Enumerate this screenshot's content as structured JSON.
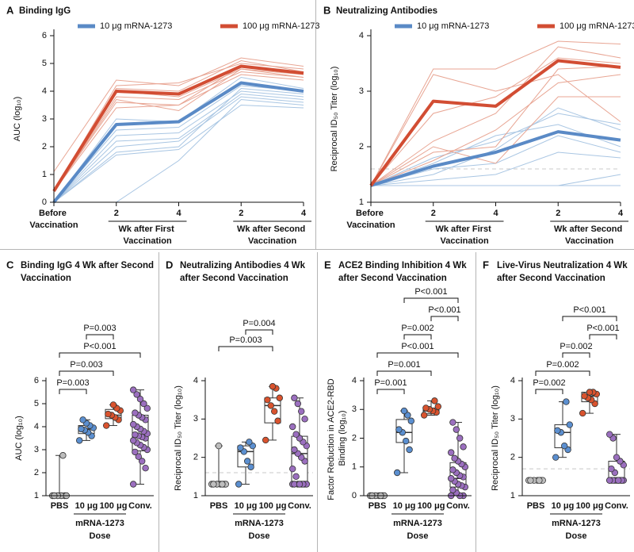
{
  "chart_data": [
    {
      "type": "line",
      "panel": "A",
      "title": "Binding IgG",
      "ylabel": "AUC (log₁₀)",
      "categories": [
        "Before Vaccination",
        "2",
        "4",
        "2",
        "4"
      ],
      "x_groups": [
        "Wk after First Vaccination",
        "Wk after Second Vaccination"
      ],
      "ylim": [
        0,
        6
      ],
      "yticks": [
        0,
        1,
        2,
        3,
        4,
        5,
        6
      ],
      "legend": "top",
      "series": [
        {
          "name": "10 μg mRNA-1273",
          "color": "#5a8ac6",
          "values": [
            0,
            2.8,
            2.9,
            4.3,
            4.0
          ]
        },
        {
          "name": "100 μg mRNA-1273",
          "color": "#d24d33",
          "values": [
            0.4,
            4.0,
            3.9,
            4.9,
            4.65
          ]
        }
      ],
      "individuals": [
        {
          "color": "#a9c6e3",
          "values": [
            0,
            3.0,
            2.9,
            4.5,
            4.1
          ]
        },
        {
          "color": "#a9c6e3",
          "values": [
            0,
            2.6,
            2.7,
            4.2,
            4.0
          ]
        },
        {
          "color": "#a9c6e3",
          "values": [
            0,
            2.4,
            2.5,
            4.0,
            3.8
          ]
        },
        {
          "color": "#a9c6e3",
          "values": [
            0,
            2.2,
            2.3,
            3.9,
            3.7
          ]
        },
        {
          "color": "#a9c6e3",
          "values": [
            0,
            2.0,
            2.2,
            3.8,
            3.6
          ]
        },
        {
          "color": "#a9c6e3",
          "values": [
            0,
            1.8,
            2.0,
            4.1,
            3.9
          ]
        },
        {
          "color": "#a9c6e3",
          "values": [
            0,
            1.7,
            1.9,
            3.5,
            3.4
          ]
        },
        {
          "color": "#a9c6e3",
          "values": [
            0,
            0,
            1.5,
            3.7,
            3.5
          ]
        },
        {
          "color": "#e8a593",
          "values": [
            1.1,
            4.4,
            4.2,
            5.2,
            4.9
          ]
        },
        {
          "color": "#e8a593",
          "values": [
            0.4,
            4.2,
            4.3,
            5.0,
            4.8
          ]
        },
        {
          "color": "#e8a593",
          "values": [
            0.4,
            4.0,
            3.8,
            4.8,
            4.6
          ]
        },
        {
          "color": "#e8a593",
          "values": [
            0.4,
            3.8,
            3.7,
            4.7,
            4.5
          ]
        },
        {
          "color": "#e8a593",
          "values": [
            0.4,
            3.6,
            3.5,
            4.6,
            4.4
          ]
        },
        {
          "color": "#e8a593",
          "values": [
            0.4,
            3.4,
            3.5,
            4.9,
            4.7
          ]
        },
        {
          "color": "#e8a593",
          "values": [
            0.4,
            4.1,
            4.0,
            5.1,
            4.7
          ]
        },
        {
          "color": "#e8a593",
          "values": [
            0.4,
            3.7,
            3.3,
            4.8,
            4.5
          ]
        }
      ]
    },
    {
      "type": "line",
      "panel": "B",
      "title": "Neutralizing Antibodies",
      "ylabel": "Reciprocal ID₅₀ Titer (log₁₀)",
      "categories": [
        "Before Vaccination",
        "2",
        "4",
        "2",
        "4"
      ],
      "x_groups": [
        "Wk after First Vaccination",
        "Wk after Second Vaccination"
      ],
      "ylim": [
        1,
        4
      ],
      "yticks": [
        1,
        2,
        3,
        4
      ],
      "legend": "top",
      "reference_line": 1.6,
      "series": [
        {
          "name": "10 μg mRNA-1273",
          "color": "#5a8ac6",
          "values": [
            1.3,
            1.65,
            1.9,
            2.27,
            2.12
          ]
        },
        {
          "name": "100 μg mRNA-1273",
          "color": "#d24d33",
          "values": [
            1.3,
            2.82,
            2.73,
            3.55,
            3.43
          ]
        }
      ],
      "individuals": [
        {
          "color": "#a9c6e3",
          "values": [
            1.3,
            1.3,
            1.3,
            1.3,
            1.3
          ]
        },
        {
          "color": "#a9c6e3",
          "values": [
            1.3,
            1.5,
            1.95,
            2.7,
            2.3
          ]
        },
        {
          "color": "#a9c6e3",
          "values": [
            1.3,
            1.3,
            1.3,
            1.3,
            1.5
          ]
        },
        {
          "color": "#a9c6e3",
          "values": [
            1.3,
            1.8,
            2.1,
            2.6,
            2.4
          ]
        },
        {
          "color": "#a9c6e3",
          "values": [
            1.3,
            1.6,
            1.7,
            2.2,
            1.9
          ]
        },
        {
          "color": "#a9c6e3",
          "values": [
            1.3,
            1.4,
            1.5,
            1.9,
            1.8
          ]
        },
        {
          "color": "#a9c6e3",
          "values": [
            1.3,
            1.7,
            2.2,
            2.4,
            2.0
          ]
        },
        {
          "color": "#e8a593",
          "values": [
            1.3,
            3.4,
            3.4,
            3.9,
            3.85
          ]
        },
        {
          "color": "#e8a593",
          "values": [
            1.3,
            3.3,
            3.0,
            3.3,
            2.45
          ]
        },
        {
          "color": "#e8a593",
          "values": [
            1.3,
            2.6,
            2.9,
            3.6,
            3.5
          ]
        },
        {
          "color": "#e8a593",
          "values": [
            1.3,
            2.1,
            2.6,
            3.8,
            3.6
          ]
        },
        {
          "color": "#e8a593",
          "values": [
            1.3,
            1.75,
            2.3,
            3.15,
            3.3
          ]
        },
        {
          "color": "#e8a593",
          "values": [
            1.3,
            1.9,
            2.0,
            3.4,
            3.45
          ]
        },
        {
          "color": "#e8a593",
          "values": [
            1.3,
            2.0,
            1.7,
            2.9,
            2.9
          ]
        }
      ]
    },
    {
      "type": "box",
      "panel": "C",
      "title": "Binding IgG 4 Wk after Second Vaccination",
      "ylabel": "AUC (log₁₀)",
      "categories": [
        "PBS",
        "10 μg",
        "100 μg",
        "Conv."
      ],
      "x_group": "mRNA-1273",
      "x_label": "Dose",
      "ylim": [
        1,
        6
      ],
      "yticks": [
        1,
        2,
        3,
        4,
        5,
        6
      ],
      "boxes": [
        {
          "color": "#bdbdbd",
          "min": 1,
          "q1": 1,
          "median": 1,
          "q3": 1,
          "max": 2.75,
          "points": [
            1,
            1,
            1,
            1,
            1,
            1,
            2.75
          ]
        },
        {
          "color": "#5b8fd0",
          "min": 3.4,
          "q1": 3.7,
          "median": 3.9,
          "q3": 4.05,
          "max": 4.3,
          "points": [
            3.4,
            3.6,
            3.75,
            3.85,
            3.9,
            3.95,
            4.05,
            4.15,
            4.3
          ]
        },
        {
          "color": "#d9532e",
          "min": 4.05,
          "q1": 4.35,
          "median": 4.5,
          "q3": 4.75,
          "max": 4.95,
          "points": [
            4.05,
            4.3,
            4.4,
            4.5,
            4.55,
            4.7,
            4.8,
            4.95
          ]
        },
        {
          "color": "#9b6fbf",
          "min": 1.5,
          "q1": 2.95,
          "median": 3.6,
          "q3": 4.5,
          "max": 5.6,
          "points": [
            1.5,
            2.2,
            2.5,
            2.7,
            2.9,
            3.0,
            3.1,
            3.2,
            3.3,
            3.4,
            3.5,
            3.55,
            3.6,
            3.65,
            3.7,
            3.8,
            3.9,
            4.0,
            4.1,
            4.3,
            4.4,
            4.5,
            4.6,
            4.8,
            5.0,
            5.2,
            5.4,
            5.6
          ]
        }
      ],
      "comparisons": [
        {
          "label": "P=0.003",
          "between": [
            0,
            1
          ]
        },
        {
          "label": "P=0.003",
          "between": [
            0,
            2
          ]
        },
        {
          "label": "P<0.001",
          "between": [
            0,
            3
          ]
        },
        {
          "label": "P=0.003",
          "between": [
            1,
            2
          ]
        }
      ]
    },
    {
      "type": "box",
      "panel": "D",
      "title": "Neutralizing Antibodies 4 Wk after Second Vaccination",
      "ylabel": "Reciprocal ID₅₀ Titer (log₁₀)",
      "categories": [
        "PBS",
        "10 μg",
        "100 μg",
        "Conv."
      ],
      "x_group": "mRNA-1273",
      "x_label": "Dose",
      "ylim": [
        1,
        4
      ],
      "yticks": [
        1,
        2,
        3,
        4
      ],
      "reference_line": 1.6,
      "boxes": [
        {
          "color": "#bdbdbd",
          "min": 1.3,
          "q1": 1.3,
          "median": 1.3,
          "q3": 1.3,
          "max": 2.3,
          "points": [
            1.3,
            1.3,
            1.3,
            1.3,
            1.3,
            1.3,
            1.3,
            2.3
          ]
        },
        {
          "color": "#5b8fd0",
          "min": 1.3,
          "q1": 1.75,
          "median": 2.15,
          "q3": 2.3,
          "max": 2.4,
          "points": [
            1.3,
            1.75,
            1.9,
            2.15,
            2.25,
            2.3,
            2.4
          ]
        },
        {
          "color": "#d9532e",
          "min": 2.45,
          "q1": 2.9,
          "median": 3.35,
          "q3": 3.55,
          "max": 3.85,
          "points": [
            2.45,
            2.95,
            3.2,
            3.35,
            3.5,
            3.55,
            3.8,
            3.85
          ]
        },
        {
          "color": "#9b6fbf",
          "min": 1.3,
          "q1": 1.3,
          "median": 2.1,
          "q3": 2.55,
          "max": 3.55,
          "points": [
            1.3,
            1.3,
            1.3,
            1.3,
            1.3,
            1.3,
            1.3,
            1.3,
            1.5,
            1.7,
            1.9,
            2.0,
            2.1,
            2.2,
            2.3,
            2.4,
            2.5,
            2.6,
            2.8,
            3.0,
            3.2,
            3.4,
            3.55
          ]
        }
      ],
      "comparisons": [
        {
          "label": "P=0.003",
          "between": [
            0,
            2
          ]
        },
        {
          "label": "P=0.004",
          "between": [
            1,
            2
          ]
        }
      ]
    },
    {
      "type": "box",
      "panel": "E",
      "title": "ACE2 Binding Inhibition 4 Wk after Second Vaccination",
      "ylabel": "Factor Reduction in ACE2-RBD Binding (log₁₀)",
      "categories": [
        "PBS",
        "10 μg",
        "100 μg",
        "Conv."
      ],
      "x_group": "mRNA-1273",
      "x_label": "Dose",
      "ylim": [
        0,
        4
      ],
      "yticks": [
        0,
        1,
        2,
        3,
        4
      ],
      "boxes": [
        {
          "color": "#bdbdbd",
          "min": 0,
          "q1": 0,
          "median": 0,
          "q3": 0,
          "max": 0,
          "points": [
            0,
            0,
            0,
            0,
            0,
            0,
            0
          ]
        },
        {
          "color": "#5b8fd0",
          "min": 0.8,
          "q1": 1.85,
          "median": 2.2,
          "q3": 2.65,
          "max": 2.95,
          "points": [
            0.8,
            1.6,
            1.9,
            2.2,
            2.3,
            2.6,
            2.8,
            2.95
          ]
        },
        {
          "color": "#d9532e",
          "min": 2.8,
          "q1": 2.85,
          "median": 2.95,
          "q3": 3.05,
          "max": 3.3,
          "points": [
            2.8,
            2.9,
            2.95,
            3.0,
            3.05,
            3.1,
            3.3
          ]
        },
        {
          "color": "#9b6fbf",
          "min": 0,
          "q1": 0.3,
          "median": 0.6,
          "q3": 1.15,
          "max": 2.55,
          "points": [
            0,
            0,
            0,
            0.1,
            0.2,
            0.3,
            0.35,
            0.4,
            0.5,
            0.6,
            0.65,
            0.7,
            0.8,
            0.9,
            1.0,
            1.1,
            1.2,
            1.3,
            1.5,
            1.7,
            2.0,
            2.3,
            2.55
          ]
        }
      ],
      "comparisons": [
        {
          "label": "P=0.001",
          "between": [
            0,
            1
          ]
        },
        {
          "label": "P=0.001",
          "between": [
            0,
            2
          ]
        },
        {
          "label": "P<0.001",
          "between": [
            0,
            3
          ]
        },
        {
          "label": "P=0.002",
          "between": [
            1,
            2
          ]
        },
        {
          "label": "P<0.001",
          "between": [
            2,
            3
          ]
        },
        {
          "label": "P<0.001",
          "between": [
            1,
            3
          ]
        }
      ]
    },
    {
      "type": "box",
      "panel": "F",
      "title": "Live-Virus Neutralization 4 Wk after Second Vaccination",
      "ylabel": "Reciprocal ID₅₀ Titer (log₁₀)",
      "categories": [
        "PBS",
        "10 μg",
        "100 μg",
        "Conv."
      ],
      "x_group": "mRNA-1273",
      "x_label": "Dose",
      "ylim": [
        1,
        4
      ],
      "yticks": [
        1,
        2,
        3,
        4
      ],
      "reference_line": 1.7,
      "boxes": [
        {
          "color": "#bdbdbd",
          "min": 1.4,
          "q1": 1.4,
          "median": 1.4,
          "q3": 1.4,
          "max": 1.4,
          "points": [
            1.4,
            1.4,
            1.4,
            1.4,
            1.4,
            1.4,
            1.4
          ]
        },
        {
          "color": "#5b8fd0",
          "min": 2.0,
          "q1": 2.25,
          "median": 2.65,
          "q3": 2.85,
          "max": 3.45,
          "points": [
            2.0,
            2.2,
            2.3,
            2.65,
            2.7,
            2.85,
            3.45
          ]
        },
        {
          "color": "#d9532e",
          "min": 3.15,
          "q1": 3.45,
          "median": 3.6,
          "q3": 3.7,
          "max": 3.7,
          "points": [
            3.15,
            3.4,
            3.5,
            3.55,
            3.6,
            3.65,
            3.7,
            3.7
          ]
        },
        {
          "color": "#9b6fbf",
          "min": 1.4,
          "q1": 1.4,
          "median": 1.4,
          "q3": 1.9,
          "max": 2.6,
          "points": [
            1.4,
            1.4,
            1.4,
            1.4,
            1.4,
            1.4,
            1.4,
            1.4,
            1.4,
            1.4,
            1.4,
            1.4,
            1.6,
            1.7,
            1.8,
            1.9,
            2.0,
            2.5,
            2.6
          ]
        }
      ],
      "comparisons": [
        {
          "label": "P=0.002",
          "between": [
            0,
            1
          ]
        },
        {
          "label": "P=0.002",
          "between": [
            0,
            2
          ]
        },
        {
          "label": "P=0.002",
          "between": [
            1,
            2
          ]
        },
        {
          "label": "P<0.001",
          "between": [
            2,
            3
          ]
        },
        {
          "label": "P<0.001",
          "between": [
            1,
            3
          ]
        }
      ]
    }
  ]
}
